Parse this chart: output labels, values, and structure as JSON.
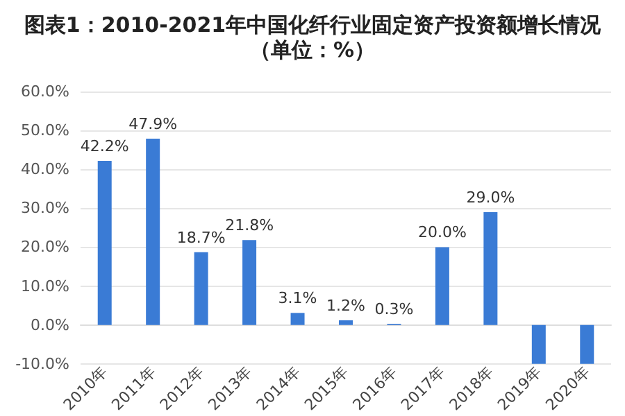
{
  "chart_data": {
    "type": "bar",
    "title": "图表1：2010-2021年中国化纤行业固定资产投资额增长情况（单位：%）",
    "categories": [
      "2010年",
      "2011年",
      "2012年",
      "2013年",
      "2014年",
      "2015年",
      "2016年",
      "2017年",
      "2018年",
      "2019年",
      "2020年"
    ],
    "values": [
      42.2,
      47.9,
      18.7,
      21.8,
      3.1,
      1.2,
      0.3,
      20.0,
      29.0,
      -10,
      -10
    ],
    "value_labels": [
      "42.2%",
      "47.9%",
      "18.7%",
      "21.8%",
      "3.1%",
      "1.2%",
      "0.3%",
      "20.0%",
      "29.0%",
      null,
      null
    ],
    "color": "#3a7bd5",
    "ylim": [
      -10,
      60
    ],
    "yticks": [
      {
        "value": -10,
        "label": "-10.0%"
      },
      {
        "value": 0,
        "label": "0.0%"
      },
      {
        "value": 10,
        "label": "10.0%"
      },
      {
        "value": 20,
        "label": "20.0%"
      },
      {
        "value": 30,
        "label": "30.0%"
      },
      {
        "value": 40,
        "label": "40.0%"
      },
      {
        "value": 50,
        "label": "50.0%"
      },
      {
        "value": 60,
        "label": "60.0%"
      }
    ],
    "grid": "y"
  }
}
